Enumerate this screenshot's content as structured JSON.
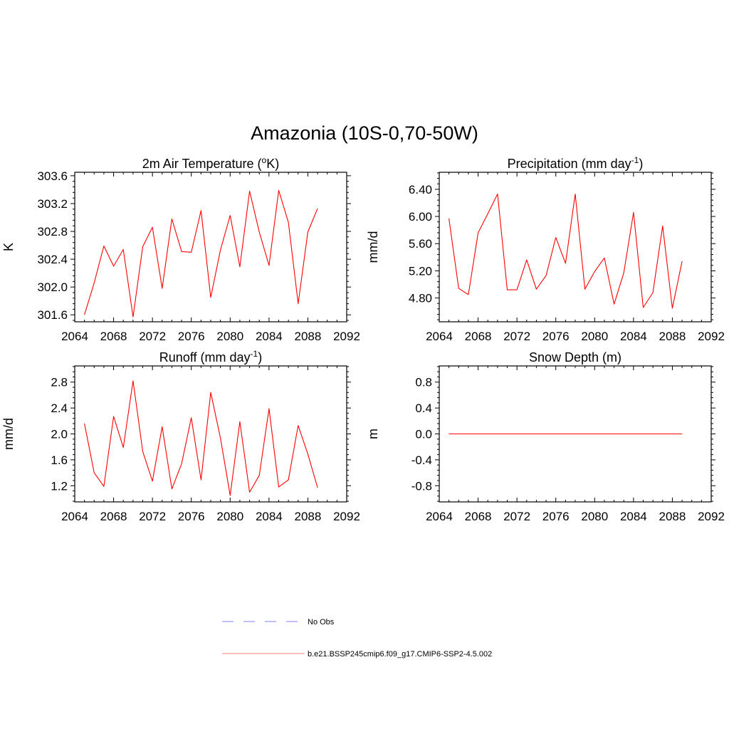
{
  "figure": {
    "title": "Amazonia (10S-0,70-50W)"
  },
  "colors": {
    "series": "#ff0000",
    "obs": "#9999ff",
    "legend_series": "#ff9999",
    "axis": "#000000"
  },
  "chart_data": [
    {
      "type": "line",
      "title_main": "2m Air Temperature (",
      "title_sup": "o",
      "title_end": "K)",
      "ylabel": "K",
      "xlabel": "",
      "xlim": [
        2064,
        2092
      ],
      "ylim": [
        301.5,
        303.65
      ],
      "xticks": [
        2064,
        2068,
        2072,
        2076,
        2080,
        2084,
        2088,
        2092
      ],
      "xtick_labels": [
        "2064",
        "2068",
        "2072",
        "2076",
        "2080",
        "2084",
        "2088",
        "2092"
      ],
      "yticks": [
        301.6,
        302.0,
        302.4,
        302.8,
        303.2,
        303.6
      ],
      "ytick_labels": [
        "301.6",
        "302.0",
        "302.4",
        "302.8",
        "303.2",
        "303.6"
      ],
      "series": [
        {
          "name": "b.e21.BSSP245cmip6.f09_g17.CMIP6-SSP2-4.5.002",
          "x": [
            2065,
            2066,
            2067,
            2068,
            2069,
            2070,
            2071,
            2072,
            2073,
            2074,
            2075,
            2076,
            2077,
            2078,
            2079,
            2080,
            2081,
            2082,
            2083,
            2084,
            2085,
            2086,
            2087,
            2088,
            2089
          ],
          "values": [
            301.6,
            302.06,
            302.59,
            302.3,
            302.54,
            301.57,
            302.58,
            302.86,
            301.98,
            302.98,
            302.51,
            302.5,
            303.1,
            301.85,
            302.53,
            303.03,
            302.29,
            303.38,
            302.79,
            302.31,
            303.39,
            302.93,
            301.76,
            302.79,
            303.13
          ]
        }
      ]
    },
    {
      "type": "line",
      "title_main": "Precipitation (mm day",
      "title_sup": "-1",
      "title_end": ")",
      "ylabel": "mm/d",
      "xlabel": "",
      "xlim": [
        2064,
        2092
      ],
      "ylim": [
        4.45,
        6.65
      ],
      "xticks": [
        2064,
        2068,
        2072,
        2076,
        2080,
        2084,
        2088,
        2092
      ],
      "xtick_labels": [
        "2064",
        "2068",
        "2072",
        "2076",
        "2080",
        "2084",
        "2088",
        "2092"
      ],
      "yticks": [
        4.8,
        5.2,
        5.6,
        6.0,
        6.4
      ],
      "ytick_labels": [
        "4.80",
        "5.20",
        "5.60",
        "6.00",
        "6.40"
      ],
      "series": [
        {
          "name": "b.e21.BSSP245cmip6.f09_g17.CMIP6-SSP2-4.5.002",
          "x": [
            2065,
            2066,
            2067,
            2068,
            2069,
            2070,
            2071,
            2072,
            2073,
            2074,
            2075,
            2076,
            2077,
            2078,
            2079,
            2080,
            2081,
            2082,
            2083,
            2084,
            2085,
            2086,
            2087,
            2088,
            2089
          ],
          "values": [
            5.97,
            4.94,
            4.85,
            5.76,
            6.04,
            6.33,
            4.92,
            4.92,
            5.36,
            4.93,
            5.13,
            5.69,
            5.31,
            6.33,
            4.93,
            5.19,
            5.39,
            4.71,
            5.17,
            6.06,
            4.66,
            4.88,
            5.86,
            4.65,
            5.34
          ]
        }
      ]
    },
    {
      "type": "line",
      "title_main": "Runoff (mm day",
      "title_sup": "-1",
      "title_end": ")",
      "ylabel": "mm/d",
      "xlabel": "",
      "xlim": [
        2064,
        2092
      ],
      "ylim": [
        0.95,
        3.05
      ],
      "xticks": [
        2064,
        2068,
        2072,
        2076,
        2080,
        2084,
        2088,
        2092
      ],
      "xtick_labels": [
        "2064",
        "2068",
        "2072",
        "2076",
        "2080",
        "2084",
        "2088",
        "2092"
      ],
      "yticks": [
        1.2,
        1.6,
        2.0,
        2.4,
        2.8
      ],
      "ytick_labels": [
        "1.2",
        "1.6",
        "2.0",
        "2.4",
        "2.8"
      ],
      "series": [
        {
          "name": "b.e21.BSSP245cmip6.f09_g17.CMIP6-SSP2-4.5.002",
          "x": [
            2065,
            2066,
            2067,
            2068,
            2069,
            2070,
            2071,
            2072,
            2073,
            2074,
            2075,
            2076,
            2077,
            2078,
            2079,
            2080,
            2081,
            2082,
            2083,
            2084,
            2085,
            2086,
            2087,
            2088,
            2089
          ],
          "values": [
            2.16,
            1.4,
            1.19,
            2.27,
            1.79,
            2.82,
            1.73,
            1.27,
            2.11,
            1.15,
            1.54,
            2.25,
            1.29,
            2.64,
            1.94,
            1.05,
            2.19,
            1.1,
            1.36,
            2.39,
            1.18,
            1.29,
            2.13,
            1.69,
            1.17
          ]
        }
      ]
    },
    {
      "type": "line",
      "title_main": "Snow Depth (m)",
      "title_sup": "",
      "title_end": "",
      "ylabel": "m",
      "xlabel": "",
      "xlim": [
        2064,
        2092
      ],
      "ylim": [
        -1.05,
        1.05
      ],
      "xticks": [
        2064,
        2068,
        2072,
        2076,
        2080,
        2084,
        2088,
        2092
      ],
      "xtick_labels": [
        "2064",
        "2068",
        "2072",
        "2076",
        "2080",
        "2084",
        "2088",
        "2092"
      ],
      "yticks": [
        -0.8,
        -0.4,
        0.0,
        0.4,
        0.8
      ],
      "ytick_labels": [
        "-0.8",
        "-0.4",
        "0.0",
        "0.4",
        "0.8"
      ],
      "series": [
        {
          "name": "b.e21.BSSP245cmip6.f09_g17.CMIP6-SSP2-4.5.002",
          "x": [
            2065,
            2089
          ],
          "values": [
            0.0,
            0.0
          ]
        }
      ]
    }
  ],
  "legend": {
    "items": [
      {
        "label": "No Obs",
        "style": "dashed",
        "color": "#9999ff"
      },
      {
        "label": "b.e21.BSSP245cmip6.f09_g17.CMIP6-SSP2-4.5.002",
        "style": "solid",
        "color": "#ff9999"
      }
    ]
  }
}
